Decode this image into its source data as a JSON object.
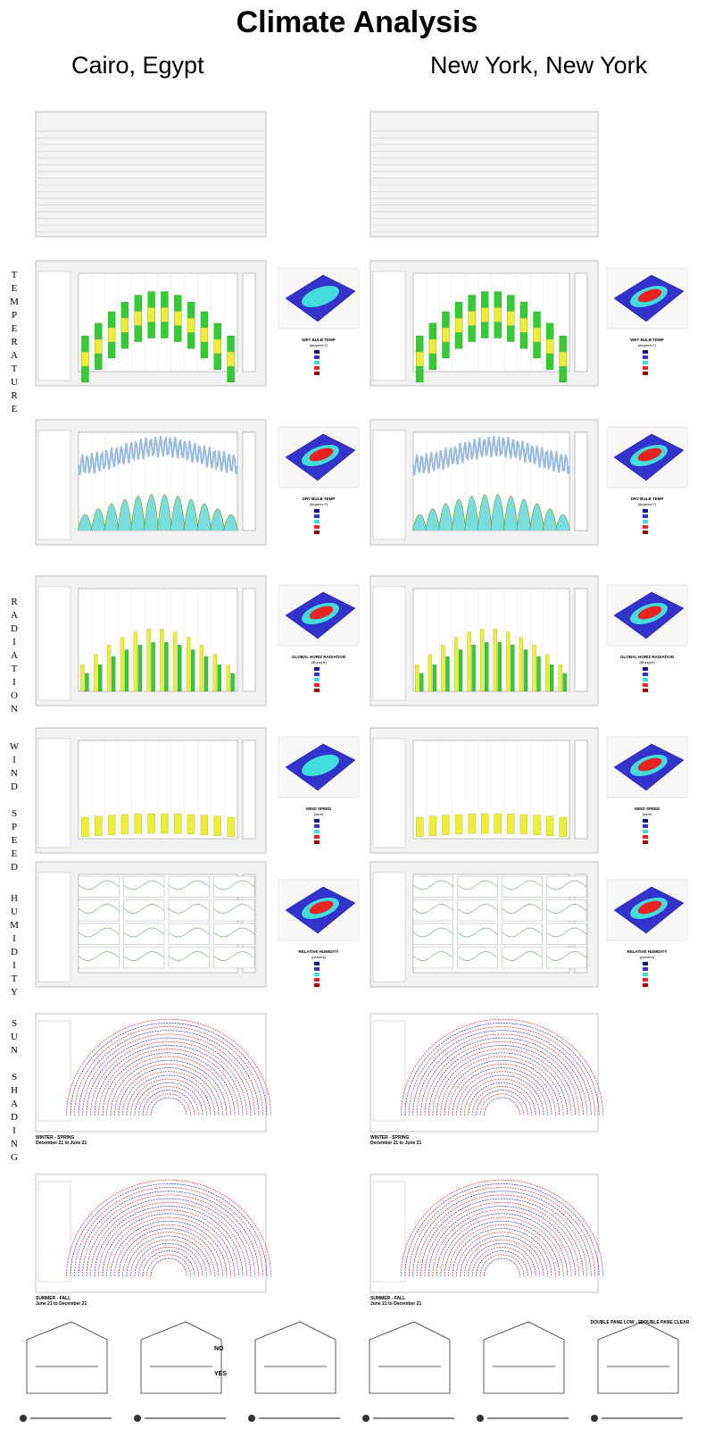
{
  "title": "Climate Analysis",
  "cities": [
    "Cairo, Egypt",
    "New York, New York"
  ],
  "section_labels": [
    "TEMPERATURE",
    "RADIATION",
    "WIND SPEED",
    "HUMIDITY",
    "SUN SHADING"
  ],
  "surface_plots": [
    {
      "title": "WET BULB TEMP",
      "units": "(degrees F)"
    },
    {
      "title": "DRY BULB TEMP",
      "units": "(degrees F)"
    },
    {
      "title": "GLOBAL HORIZ RADIATION",
      "units": "(Btu/sq.ft)"
    },
    {
      "title": "WIND SPEED",
      "units": "(mph)"
    },
    {
      "title": "RELATIVE HUMIDITY",
      "units": "(percent)"
    }
  ],
  "shading_captions": [
    {
      "season": "WINTER - SPRING",
      "dates": "December 21 to June 21"
    },
    {
      "season": "SUMMER - FALL",
      "dates": "June 21 to December 21"
    }
  ],
  "choices": [
    "NO",
    "YES"
  ],
  "glazing": [
    "DOUBLE PANE LOW - E",
    "DOUBLE PANE CLEAR"
  ]
}
